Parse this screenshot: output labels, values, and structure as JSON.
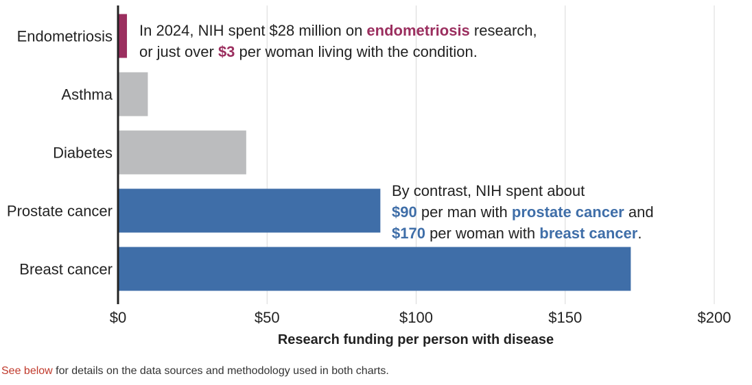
{
  "chart_data": {
    "type": "bar",
    "orientation": "horizontal",
    "categories": [
      "Endometriosis",
      "Asthma",
      "Diabetes",
      "Prostate cancer",
      "Breast cancer"
    ],
    "values": [
      3,
      10,
      43,
      88,
      172
    ],
    "bar_colors": [
      "#9b2f5f",
      "#bbbcbe",
      "#bbbcbe",
      "#3f6ea8",
      "#3f6ea8"
    ],
    "xlabel": "Research funding per person with disease",
    "xlim": [
      0,
      200
    ],
    "xticks": [
      0,
      50,
      100,
      150,
      200
    ],
    "xtick_labels": [
      "$0",
      "$50",
      "$100",
      "$150",
      "$200"
    ],
    "grid": "vertical",
    "annotations": [
      {
        "target": "Endometriosis",
        "lines": [
          [
            {
              "t": "In 2024, NIH spent $28 million on "
            },
            {
              "t": "endometriosis",
              "hl": "endo"
            },
            {
              "t": " research,"
            }
          ],
          [
            {
              "t": "or just over "
            },
            {
              "t": "$3",
              "hl": "endo"
            },
            {
              "t": " per woman living with the condition."
            }
          ]
        ]
      },
      {
        "target": "Prostate cancer",
        "lines": [
          [
            {
              "t": "By contrast, NIH spent about"
            }
          ],
          [
            {
              "t": "$90",
              "hl": "blue"
            },
            {
              "t": " per man with "
            },
            {
              "t": "prostate cancer",
              "hl": "blue"
            },
            {
              "t": " and"
            }
          ],
          [
            {
              "t": "$170",
              "hl": "blue"
            },
            {
              "t": " per woman with "
            },
            {
              "t": "breast cancer",
              "hl": "blue"
            },
            {
              "t": "."
            }
          ]
        ]
      }
    ]
  },
  "footnote": {
    "link_text": "See below",
    "text": " for details on the data sources and methodology used in both charts."
  },
  "colors": {
    "endometriosis": "#9b2f5f",
    "other": "#bbbcbe",
    "cancer": "#3f6ea8",
    "grid": "#d9d9d9",
    "axis": "#222222"
  }
}
